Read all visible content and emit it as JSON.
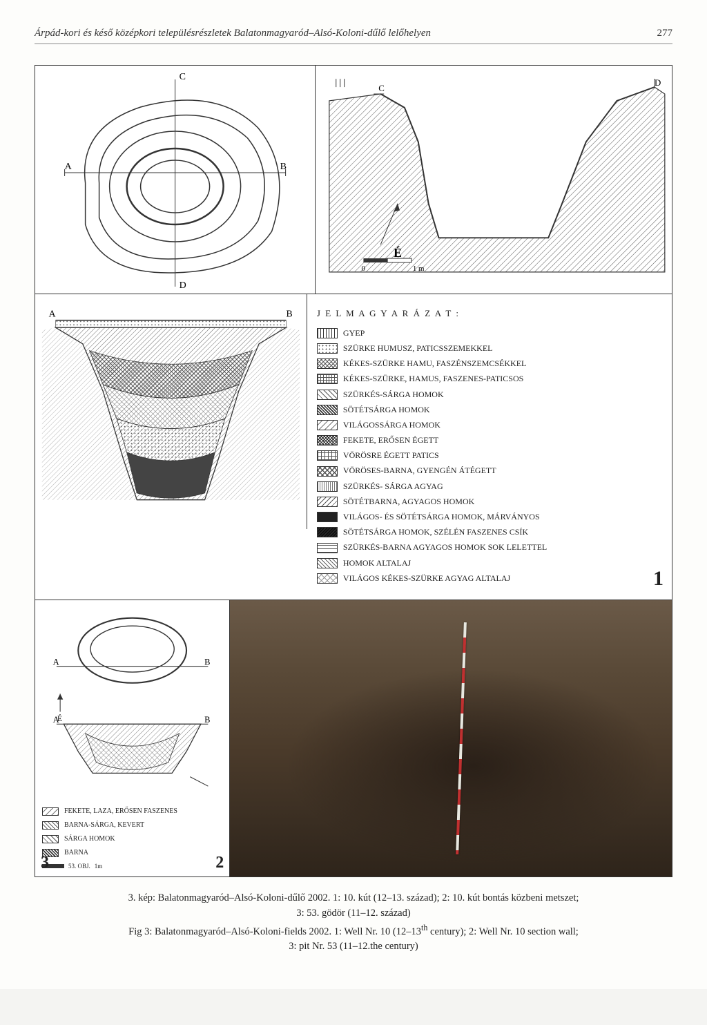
{
  "header": {
    "title_italic": "Árpád-kori és késő középkori településrészletek Balatonmagyaród–Alsó-Koloni-dűlő lelőhelyen",
    "page_number": "277"
  },
  "panel1": {
    "labels": {
      "A": "A",
      "B": "B",
      "C": "C",
      "D": "D"
    },
    "scale_min": "0",
    "scale_max": "1 m",
    "north_arrow": "É"
  },
  "cross_section": {
    "labels": {
      "A": "A",
      "B": "B",
      "C": "C",
      "D": "D",
      "Db": "D"
    }
  },
  "legend": {
    "title": "J E L M A G Y A R Á Z A T :",
    "items": [
      {
        "pattern": "vstripe",
        "label": "GYEP"
      },
      {
        "pattern": "dots",
        "label": "SZÜRKE HUMUSZ, PATICSSZEMEKKEL"
      },
      {
        "pattern": "xhatch",
        "label": "KÉKES-SZÜRKE HAMU, FASZÉNSZEMCSÉKKEL"
      },
      {
        "pattern": "grid",
        "label": "KÉKES-SZÜRKE, HAMUS, FASZENES-PATICSOS"
      },
      {
        "pattern": "diag1",
        "label": "SZÜRKÉS-SÁRGA HOMOK"
      },
      {
        "pattern": "dense-diag",
        "label": "SÖTÉTSÁRGA HOMOK"
      },
      {
        "pattern": "ltdiag",
        "label": "VILÁGOSSÁRGA HOMOK"
      },
      {
        "pattern": "xdense",
        "label": "FEKETE, ERŐSEN ÉGETT"
      },
      {
        "pattern": "box",
        "label": "VÖRÖSRE ÉGETT PATICS"
      },
      {
        "pattern": "xx",
        "label": "VÖRÖSES-BARNA, GYENGÉN ÁTÉGETT"
      },
      {
        "pattern": "wave",
        "label": "SZÜRKÉS- SÁRGA AGYAG"
      },
      {
        "pattern": "bslash",
        "label": "SÖTÉTBARNA, AGYAGOS HOMOK"
      },
      {
        "pattern": "solid-d",
        "label": "VILÁGOS- ÉS SÖTÉTSÁRGA HOMOK, MÁRVÁNYOS"
      },
      {
        "pattern": "solid-b",
        "label": "SÖTÉTSÁRGA HOMOK, SZÉLÉN FASZENES CSÍK"
      },
      {
        "pattern": "brick",
        "label": "SZÜRKÉS-BARNA AGYAGOS HOMOK SOK LELETTEL"
      },
      {
        "pattern": "zig",
        "label": "HOMOK ALTALAJ"
      },
      {
        "pattern": "ltx",
        "label": "VILÁGOS KÉKES-SZÜRKE AGYAG ALTALAJ"
      }
    ],
    "big_number": "1"
  },
  "panel3": {
    "labels": {
      "A": "A",
      "B": "B",
      "north": "É"
    },
    "legend_items": [
      {
        "pattern": "ltdiag",
        "label": "FEKETE, LAZA, ERŐSEN FASZENES"
      },
      {
        "pattern": "zig",
        "label": "BARNA-SÁRGA, KEVERT"
      },
      {
        "pattern": "diag1",
        "label": "SÁRGA HOMOK"
      },
      {
        "pattern": "dense-diag",
        "label": "BARNA"
      }
    ],
    "scale_obj": "53. OBJ.",
    "scale_len": "1m",
    "scale_zero": "0",
    "panel_number": "3"
  },
  "panel2": {
    "panel_number": "2"
  },
  "caption": {
    "line1": "3. kép: Balatonmagyaród–Alsó-Koloni-dűlő 2002. 1: 10. kút (12–13. század); 2: 10. kút bontás közbeni metszet;",
    "line2": "3: 53. gödör (11–12. század)",
    "line3_a": "Fig 3: Balatonmagyaród–Alsó-Koloni-fields 2002. 1: Well Nr. 10 (12–13",
    "line3_sup": "th",
    "line3_b": " century); 2: Well Nr. 10 section wall;",
    "line4": "3: pit Nr. 53 (11–12.the century)"
  },
  "colors": {
    "line": "#333333",
    "paper": "#fdfdfb",
    "photo_dark": "#3a2e22",
    "photo_light": "#6b5a48"
  }
}
